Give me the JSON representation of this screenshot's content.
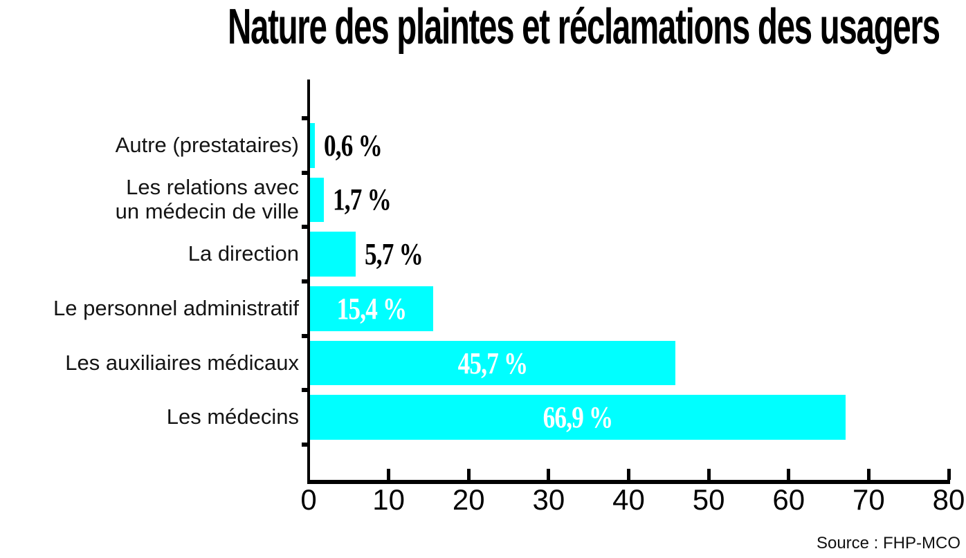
{
  "chart_data": {
    "type": "bar",
    "orientation": "horizontal",
    "title": "Nature des plaintes et réclamations des usagers",
    "categories": [
      "Autre (prestataires)",
      "Les relations avec\nun médecin de ville",
      "La direction",
      "Le personnel administratif",
      "Les auxiliaires médicaux",
      "Les médecins"
    ],
    "values": [
      0.6,
      1.7,
      5.7,
      15.4,
      45.7,
      66.9
    ],
    "value_labels": [
      "0,6 %",
      "1,7 %",
      "5,7 %",
      "15,4 %",
      "45,7 %",
      "66,9 %"
    ],
    "xlim": [
      0,
      80
    ],
    "x_ticks": [
      0,
      10,
      20,
      30,
      40,
      50,
      60,
      70,
      80
    ],
    "grid": false,
    "legend_position": "none",
    "bar_color": "#00ffff",
    "value_label_inside_color": "#ffffff",
    "value_label_outside_color": "#000000",
    "axis_color": "#000000",
    "source": "Source : FHP-MCO"
  }
}
